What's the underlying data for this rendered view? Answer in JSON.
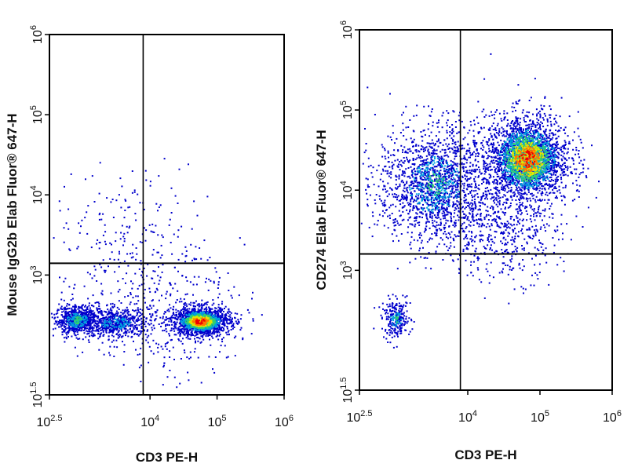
{
  "figure": {
    "panels": [
      {
        "x_axis_label": "CD3 PE-H",
        "y_axis_label": "Mouse IgG2b Elab Fluor® 647-H",
        "x_tick_labels": [
          {
            "base": "10",
            "exp": "2.5"
          },
          {
            "base": "10",
            "exp": "4"
          },
          {
            "base": "10",
            "exp": "5"
          },
          {
            "base": "10",
            "exp": "6"
          }
        ],
        "y_tick_labels": [
          {
            "base": "10",
            "exp": "1.5"
          },
          {
            "base": "10",
            "exp": "3"
          },
          {
            "base": "10",
            "exp": "4"
          },
          {
            "base": "10",
            "exp": "5"
          },
          {
            "base": "10",
            "exp": "6"
          }
        ]
      },
      {
        "x_axis_label": "CD3 PE-H",
        "y_axis_label": "CD274 Elab Fluor® 647-H",
        "x_tick_labels": [
          {
            "base": "10",
            "exp": "2.5"
          },
          {
            "base": "10",
            "exp": "4"
          },
          {
            "base": "10",
            "exp": "5"
          },
          {
            "base": "10",
            "exp": "6"
          }
        ],
        "y_tick_labels": [
          {
            "base": "10",
            "exp": "1.5"
          },
          {
            "base": "10",
            "exp": "3"
          },
          {
            "base": "10",
            "exp": "4"
          },
          {
            "base": "10",
            "exp": "5"
          },
          {
            "base": "10",
            "exp": "6"
          }
        ]
      }
    ]
  },
  "chart_data": [
    {
      "type": "scatter",
      "title": "",
      "xlabel": "CD3 PE-H",
      "ylabel": "Mouse IgG2b Elab Fluor® 647-H",
      "x_scale": "log",
      "y_scale": "log",
      "xlim": [
        316,
        1000000
      ],
      "ylim": [
        32,
        1000000
      ],
      "x_ticks": [
        316,
        10000,
        100000,
        1000000
      ],
      "y_ticks": [
        32,
        1000,
        10000,
        100000,
        1000000
      ],
      "quadrant_gate": {
        "x": 7900,
        "y": 1400
      },
      "point_color_scale": [
        "#0000cc",
        "#00a0e0",
        "#30d070",
        "#e6e600",
        "#ff7700",
        "#ee0000"
      ],
      "populations": [
        {
          "name": "",
          "center": [
            800,
            280
          ],
          "spread_log10": [
            0.16,
            0.09
          ],
          "points": 650,
          "peak_density": 0.55
        },
        {
          "name": "",
          "center": [
            3000,
            260
          ],
          "spread_log10": [
            0.25,
            0.09
          ],
          "points": 550,
          "peak_density": 0.45
        },
        {
          "name": "",
          "center": [
            55000,
            270
          ],
          "spread_log10": [
            0.22,
            0.09
          ],
          "points": 1400,
          "peak_density": 1.0
        },
        {
          "name": "",
          "center": [
            15000,
            330
          ],
          "spread_log10": [
            0.6,
            0.4
          ],
          "points": 350,
          "peak_density": 0.1
        },
        {
          "name": "",
          "center": [
            5000,
            2500
          ],
          "spread_log10": [
            0.6,
            0.45
          ],
          "points": 220,
          "peak_density": 0.05
        }
      ]
    },
    {
      "type": "scatter",
      "title": "",
      "xlabel": "CD3 PE-H",
      "ylabel": "CD274 Elab Fluor® 647-H",
      "x_scale": "log",
      "y_scale": "log",
      "xlim": [
        316,
        1000000
      ],
      "ylim": [
        32,
        1000000
      ],
      "x_ticks": [
        316,
        10000,
        100000,
        1000000
      ],
      "y_ticks": [
        32,
        1000,
        10000,
        100000,
        1000000
      ],
      "quadrant_gate": {
        "x": 7900,
        "y": 1600
      },
      "point_color_scale": [
        "#0000cc",
        "#00a0e0",
        "#30d070",
        "#e6e600",
        "#ff7700",
        "#ee0000"
      ],
      "populations": [
        {
          "name": "",
          "center": [
            1000,
            250
          ],
          "spread_log10": [
            0.1,
            0.12
          ],
          "points": 230,
          "peak_density": 0.5
        },
        {
          "name": "",
          "center": [
            3500,
            12000
          ],
          "spread_log10": [
            0.4,
            0.38
          ],
          "points": 1600,
          "peak_density": 0.5
        },
        {
          "name": "",
          "center": [
            65000,
            25000
          ],
          "spread_log10": [
            0.3,
            0.28
          ],
          "points": 2000,
          "peak_density": 1.0
        },
        {
          "name": "",
          "center": [
            30000,
            3000
          ],
          "spread_log10": [
            0.4,
            0.3
          ],
          "points": 450,
          "peak_density": 0.15
        }
      ]
    }
  ]
}
